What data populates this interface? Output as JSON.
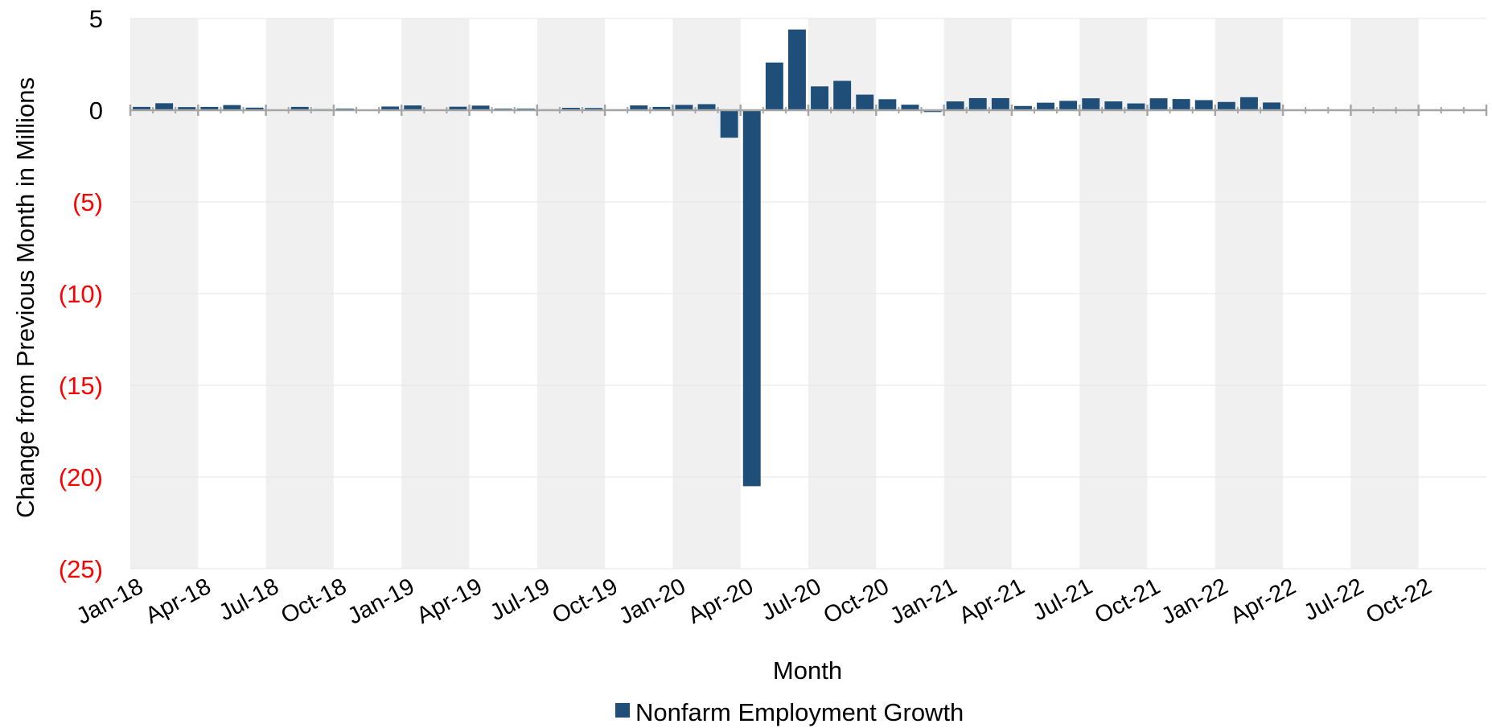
{
  "chart_data": {
    "type": "bar",
    "xlabel": "Month",
    "ylabel": "Change from Previous Month in Millions",
    "ylim": [
      -25,
      5
    ],
    "y_ticks": [
      {
        "value": 5,
        "label": "5"
      },
      {
        "value": 0,
        "label": "0"
      },
      {
        "value": -5,
        "label": "(5)"
      },
      {
        "value": -10,
        "label": "(10)"
      },
      {
        "value": -15,
        "label": "(15)"
      },
      {
        "value": -20,
        "label": "(20)"
      },
      {
        "value": -25,
        "label": "(25)"
      }
    ],
    "x_tick_labels": [
      "Jan-18",
      "Apr-18",
      "Jul-18",
      "Oct-18",
      "Jan-19",
      "Apr-19",
      "Jul-19",
      "Oct-19",
      "Jan-20",
      "Apr-20",
      "Jul-20",
      "Oct-20",
      "Jan-21",
      "Apr-21",
      "Jul-21",
      "Oct-21",
      "Jan-22",
      "Apr-22",
      "Jul-22",
      "Oct-22"
    ],
    "grid": true,
    "alternating_bands": true,
    "legend_position": "bottom",
    "colors": {
      "bar": "#1f4e79",
      "negative_tick": "#ff0000",
      "band": "#f0f0f0",
      "axis": "#a6a6a6",
      "grid": "#e6e6e6"
    },
    "series": [
      {
        "name": "Nonfarm Employment Growth",
        "categories": [
          "Jan-18",
          "Feb-18",
          "Mar-18",
          "Apr-18",
          "May-18",
          "Jun-18",
          "Jul-18",
          "Aug-18",
          "Sep-18",
          "Oct-18",
          "Nov-18",
          "Dec-18",
          "Jan-19",
          "Feb-19",
          "Mar-19",
          "Apr-19",
          "May-19",
          "Jun-19",
          "Jul-19",
          "Aug-19",
          "Sep-19",
          "Oct-19",
          "Nov-19",
          "Dec-19",
          "Jan-20",
          "Feb-20",
          "Mar-20",
          "Apr-20",
          "May-20",
          "Jun-20",
          "Jul-20",
          "Aug-20",
          "Sep-20",
          "Oct-20",
          "Nov-20",
          "Dec-20",
          "Jan-21",
          "Feb-21",
          "Mar-21",
          "Apr-21",
          "May-21",
          "Jun-21",
          "Jul-21",
          "Aug-21",
          "Sep-21",
          "Oct-21",
          "Nov-21",
          "Dec-21",
          "Jan-22",
          "Feb-22",
          "Mar-22"
        ],
        "values": [
          0.18,
          0.38,
          0.17,
          0.18,
          0.28,
          0.14,
          0.03,
          0.18,
          0.06,
          0.09,
          0.04,
          0.2,
          0.26,
          0.04,
          0.19,
          0.25,
          0.09,
          0.09,
          0.05,
          0.13,
          0.12,
          0.05,
          0.26,
          0.18,
          0.29,
          0.33,
          -1.5,
          -20.5,
          2.6,
          4.4,
          1.3,
          1.6,
          0.85,
          0.6,
          0.3,
          -0.1,
          0.48,
          0.66,
          0.66,
          0.23,
          0.41,
          0.51,
          0.65,
          0.48,
          0.37,
          0.65,
          0.61,
          0.55,
          0.45,
          0.71,
          0.42
        ]
      }
    ]
  }
}
